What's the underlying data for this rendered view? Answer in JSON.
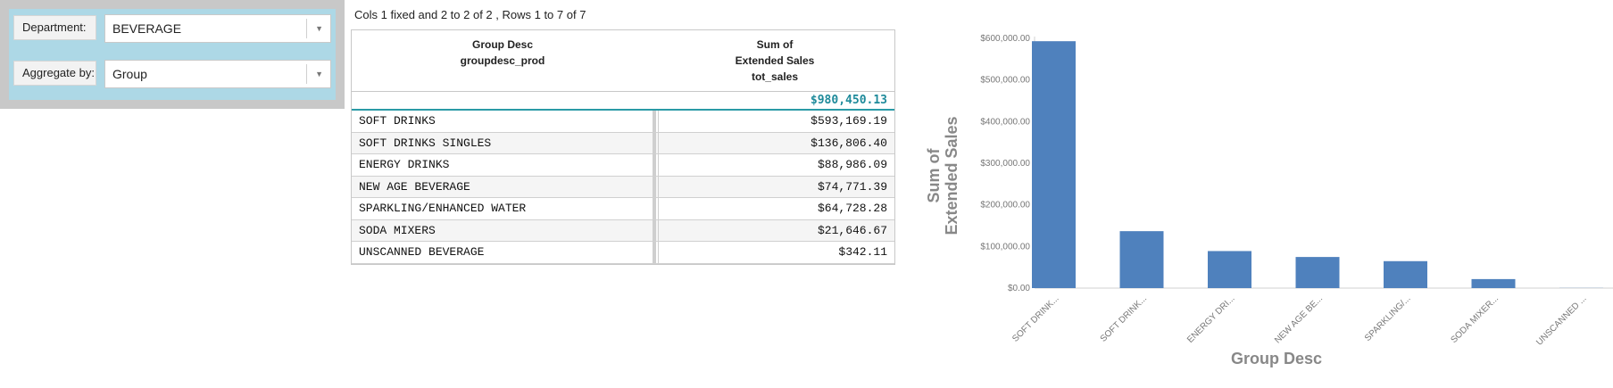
{
  "filters": {
    "department_label": "Department:",
    "department_value": "BEVERAGE",
    "aggregate_label": "Aggregate by:",
    "aggregate_value": "Group",
    "dropdown_icon": "triangle-down-icon"
  },
  "table": {
    "pager_text": "Cols 1 fixed and 2 to 2 of 2 , Rows 1 to 7 of 7",
    "col1_header_line1": "Group Desc",
    "col1_header_line2": "groupdesc_prod",
    "col2_header_line1": "Sum of",
    "col2_header_line2": "Extended Sales",
    "col2_header_line3": "tot_sales",
    "total": "$980,450.13",
    "rows": [
      {
        "group": "SOFT DRINKS",
        "sales": "$593,169.19"
      },
      {
        "group": "SOFT DRINKS SINGLES",
        "sales": "$136,806.40"
      },
      {
        "group": "ENERGY DRINKS",
        "sales": "$88,986.09"
      },
      {
        "group": "NEW AGE BEVERAGE",
        "sales": "$74,771.39"
      },
      {
        "group": "SPARKLING/ENHANCED WATER",
        "sales": "$64,728.28"
      },
      {
        "group": "SODA MIXERS",
        "sales": "$21,646.67"
      },
      {
        "group": "UNSCANNED BEVERAGE",
        "sales": "$342.11"
      }
    ]
  },
  "chart_data": {
    "type": "bar",
    "categories": [
      "SOFT DRINK...",
      "SOFT DRINK...",
      "ENERGY DRI...",
      "NEW AGE BE...",
      "SPARKLING/...",
      "SODA MIXER...",
      "UNSCANNED ..."
    ],
    "values": [
      593169.19,
      136806.4,
      88986.09,
      74771.39,
      64728.28,
      21646.67,
      342.11
    ],
    "ylim": [
      0,
      600000
    ],
    "yticks": [
      "$0.00",
      "$100,000.00",
      "$200,000.00",
      "$300,000.00",
      "$400,000.00",
      "$500,000.00",
      "$600,000.00"
    ],
    "ytick_values": [
      0,
      100000,
      200000,
      300000,
      400000,
      500000,
      600000
    ],
    "xlabel": "Group Desc",
    "ylabel_line1": "Sum of",
    "ylabel_line2": "Extended Sales",
    "bar_color": "#4f81bd",
    "grid": false
  }
}
